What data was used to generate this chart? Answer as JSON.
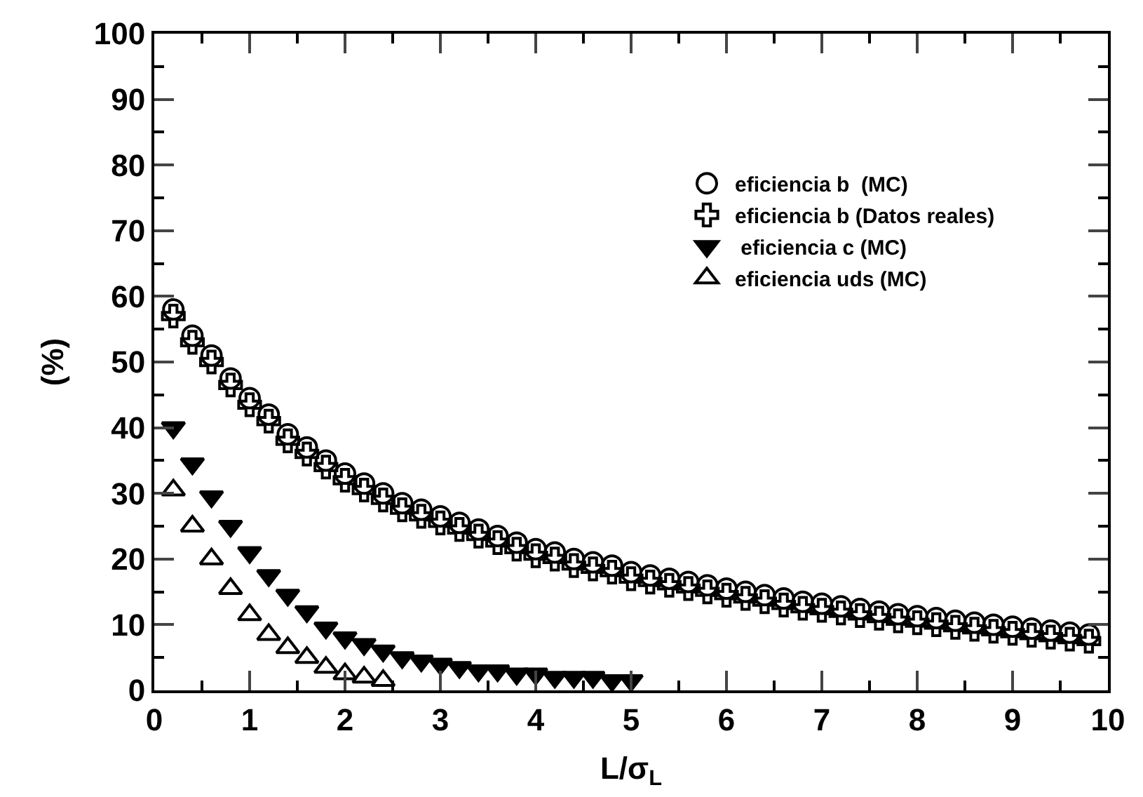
{
  "chart_data": {
    "type": "scatter",
    "xlabel": "L/σ$_{L}$",
    "ylabel": "(%)",
    "xlim": [
      0,
      10
    ],
    "ylim": [
      0,
      100
    ],
    "xticks": [
      0,
      1,
      2,
      3,
      4,
      5,
      6,
      7,
      8,
      9,
      10
    ],
    "yticks": [
      0,
      10,
      20,
      30,
      40,
      50,
      60,
      70,
      80,
      90,
      100
    ],
    "legend": "right",
    "series": [
      {
        "name": "eficiencia b  (MC)",
        "color": "#000000",
        "marker": "circle",
        "x": [
          0.2,
          0.4,
          0.6,
          0.8,
          1.0,
          1.2,
          1.4,
          1.6,
          1.8,
          2.0,
          2.2,
          2.4,
          2.6,
          2.8,
          3.0,
          3.2,
          3.4,
          3.6,
          3.8,
          4.0,
          4.2,
          4.4,
          4.6,
          4.8,
          5.0,
          5.2,
          5.4,
          5.6,
          5.8,
          6.0,
          6.2,
          6.4,
          6.6,
          6.8,
          7.0,
          7.2,
          7.4,
          7.6,
          7.8,
          8.0,
          8.2,
          8.4,
          8.6,
          8.8,
          9.0,
          9.2,
          9.4,
          9.6,
          9.8
        ],
        "values": [
          58,
          54,
          51,
          47.5,
          44.5,
          42,
          39,
          37,
          35,
          33,
          31.5,
          30,
          28.5,
          27.5,
          26.5,
          25.5,
          24.5,
          23.5,
          22.5,
          21.5,
          21,
          20,
          19.5,
          19,
          18,
          17.5,
          17,
          16.5,
          16,
          15.5,
          15,
          14.5,
          14,
          13.5,
          13.2,
          12.8,
          12.4,
          12,
          11.6,
          11.3,
          11,
          10.6,
          10.3,
          10,
          9.7,
          9.4,
          9.1,
          8.8,
          8.5
        ]
      },
      {
        "name": "eficiencia b (Datos reales)",
        "color": "#000000",
        "marker": "cross",
        "x": [
          0.2,
          0.4,
          0.6,
          0.8,
          1.0,
          1.2,
          1.4,
          1.6,
          1.8,
          2.0,
          2.2,
          2.4,
          2.6,
          2.8,
          3.0,
          3.2,
          3.4,
          3.6,
          3.8,
          4.0,
          4.2,
          4.4,
          4.6,
          4.8,
          5.0,
          5.2,
          5.4,
          5.6,
          5.8,
          6.0,
          6.2,
          6.4,
          6.6,
          6.8,
          7.0,
          7.2,
          7.4,
          7.6,
          7.8,
          8.0,
          8.2,
          8.4,
          8.6,
          8.8,
          9.0,
          9.2,
          9.4,
          9.6,
          9.8
        ],
        "values": [
          57,
          53,
          50,
          46.5,
          43.5,
          41,
          38,
          36,
          34,
          32,
          30.5,
          29,
          27.5,
          26.5,
          25.5,
          24.5,
          23.5,
          22.5,
          21.5,
          20.5,
          20,
          19,
          18.5,
          18,
          17,
          16.5,
          16,
          15.5,
          15,
          14.5,
          14,
          13.5,
          13,
          12.5,
          12.2,
          11.8,
          11.4,
          11,
          10.6,
          10.3,
          10,
          9.6,
          9.3,
          9,
          8.7,
          8.4,
          8.1,
          7.8,
          7.5
        ]
      },
      {
        "name": " eficiencia c (MC)",
        "color": "#000000",
        "marker": "triangle-down",
        "x": [
          0.2,
          0.4,
          0.6,
          0.8,
          1.0,
          1.2,
          1.4,
          1.6,
          1.8,
          2.0,
          2.2,
          2.4,
          2.6,
          2.8,
          3.0,
          3.2,
          3.4,
          3.6,
          3.8,
          4.0,
          4.2,
          4.4,
          4.6,
          4.8,
          5.0
        ],
        "values": [
          40,
          34.5,
          29.5,
          25,
          21,
          17.5,
          14.5,
          12,
          9.5,
          8,
          7,
          6,
          5,
          4.5,
          4,
          3.5,
          3,
          3,
          2.5,
          2.5,
          2,
          2,
          2,
          1.5,
          1.5
        ]
      },
      {
        "name": "eficiencia uds (MC)",
        "color": "#000000",
        "marker": "triangle",
        "x": [
          0.2,
          0.4,
          0.6,
          0.8,
          1.0,
          1.2,
          1.4,
          1.6,
          1.8,
          2.0,
          2.2,
          2.4
        ],
        "values": [
          30.5,
          25,
          20,
          15.5,
          11.5,
          8.5,
          6.5,
          5,
          3.5,
          2.5,
          2,
          1.5
        ]
      }
    ]
  }
}
